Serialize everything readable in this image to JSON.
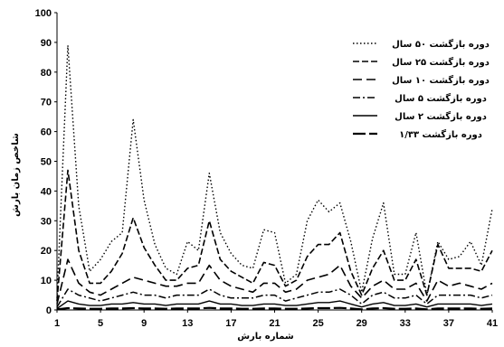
{
  "chart_data": {
    "type": "line",
    "xlabel": "شماره بارش",
    "ylabel": "شاخص زمان بارش",
    "ylim": [
      0,
      100
    ],
    "xlim": [
      1,
      41
    ],
    "yticks": [
      0,
      10,
      20,
      30,
      40,
      50,
      60,
      70,
      80,
      90,
      100
    ],
    "xticks": [
      1,
      5,
      9,
      13,
      17,
      21,
      25,
      29,
      33,
      37,
      41
    ],
    "grid": false,
    "legend_position": "top-right",
    "x": [
      1,
      2,
      3,
      4,
      5,
      6,
      7,
      8,
      9,
      10,
      11,
      12,
      13,
      14,
      15,
      16,
      17,
      18,
      19,
      20,
      21,
      22,
      23,
      24,
      25,
      26,
      27,
      28,
      29,
      30,
      31,
      32,
      33,
      34,
      35,
      36,
      37,
      38,
      39,
      40,
      41
    ],
    "series": [
      {
        "name": "دوره بازگشت ۵۰ سال",
        "dash": "1.5,2.5",
        "width": 1.4,
        "values": [
          4,
          89,
          35,
          13,
          17,
          23,
          26,
          64,
          37,
          22,
          14,
          12,
          23,
          20,
          46,
          26,
          19,
          15,
          14,
          27,
          26,
          9,
          12,
          30,
          37,
          33,
          36,
          23,
          6,
          24,
          36,
          12,
          12,
          26,
          5,
          23,
          17,
          18,
          23,
          15,
          34
        ]
      },
      {
        "name": "دوره بازگشت ۲۵ سال",
        "dash": "7,3",
        "width": 1.6,
        "values": [
          3,
          47,
          20,
          9,
          9,
          13,
          19,
          31,
          21,
          15,
          10,
          10,
          14,
          15,
          30,
          17,
          13,
          11,
          9,
          16,
          15,
          8,
          10,
          18,
          22,
          22,
          26,
          13,
          5,
          14,
          20,
          10,
          10,
          17,
          5,
          22,
          14,
          14,
          14,
          13,
          20
        ]
      },
      {
        "name": "دوره بازگشت ۱۰ سال",
        "dash": "10,5",
        "width": 1.6,
        "values": [
          2,
          17,
          9,
          6,
          5,
          7,
          9,
          11,
          10,
          9,
          8,
          8,
          9,
          9,
          15,
          10,
          8,
          7,
          6,
          9,
          9,
          6,
          7,
          10,
          11,
          12,
          15,
          8,
          4,
          8,
          10,
          7,
          7,
          9,
          3,
          10,
          8,
          9,
          8,
          7,
          9
        ]
      },
      {
        "name": "دوره بازگشت ۵ سال",
        "dash": "8,3,2,3",
        "width": 1.5,
        "values": [
          1,
          7,
          5,
          4,
          3,
          4,
          5,
          6,
          5,
          5,
          4,
          5,
          5,
          5,
          7,
          5,
          4,
          4,
          4,
          5,
          5,
          3,
          4,
          5,
          6,
          6,
          7,
          5,
          2,
          5,
          6,
          4,
          4,
          5,
          2,
          5,
          5,
          5,
          5,
          4,
          5
        ]
      },
      {
        "name": "دوره بازگشت ۲ سال",
        "dash": "none",
        "width": 1.4,
        "values": [
          0.5,
          3,
          2,
          1.5,
          1.5,
          2,
          2,
          2.5,
          2,
          2,
          1.5,
          2,
          2,
          2,
          3,
          2,
          2,
          1.5,
          1.5,
          2,
          2,
          1.5,
          1.5,
          2,
          2.5,
          2.5,
          3,
          2,
          1,
          2,
          2.5,
          1.5,
          1.5,
          2,
          1,
          2,
          2,
          2,
          2,
          1.5,
          2
        ]
      },
      {
        "name": "دوره بازگشت ۱/۳۳",
        "dash": "14,4",
        "width": 2.2,
        "values": [
          0.2,
          0.6,
          0.5,
          0.4,
          0.4,
          0.5,
          0.5,
          0.6,
          0.5,
          0.5,
          0.4,
          0.5,
          0.5,
          0.5,
          0.7,
          0.5,
          0.5,
          0.4,
          0.4,
          0.5,
          0.5,
          0.4,
          0.4,
          0.5,
          0.6,
          0.6,
          0.7,
          0.5,
          0.2,
          0.5,
          0.6,
          0.4,
          0.4,
          0.5,
          0.2,
          0.5,
          0.5,
          0.5,
          0.5,
          0.4,
          0.5
        ]
      }
    ]
  }
}
